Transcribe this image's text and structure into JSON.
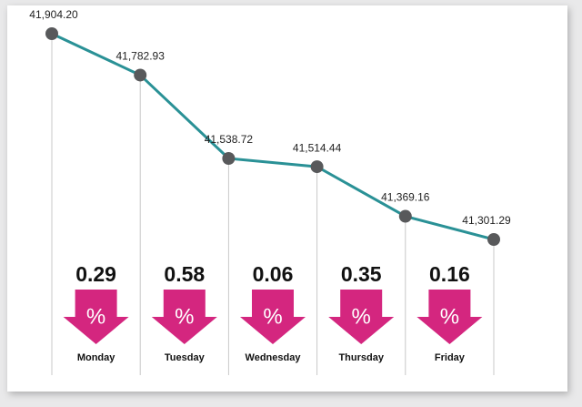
{
  "chart_data": {
    "type": "line",
    "values": [
      41904.2,
      41782.93,
      41538.72,
      41514.44,
      41369.16,
      41301.29
    ],
    "value_labels": [
      "41,904.20",
      "41,782.93",
      "41,538.72",
      "41,514.44",
      "41,369.16",
      "41,301.29"
    ],
    "color": "#2a9196",
    "marker_color": "#58595b",
    "changes": {
      "categories": [
        "Monday",
        "Tuesday",
        "Wednesday",
        "Thursday",
        "Friday"
      ],
      "values": [
        0.29,
        0.58,
        0.06,
        0.35,
        0.16
      ],
      "value_labels": [
        "0.29",
        "0.58",
        "0.06",
        "0.35",
        "0.16"
      ],
      "symbol": "%",
      "direction": "down",
      "color": "#d4267f"
    }
  }
}
